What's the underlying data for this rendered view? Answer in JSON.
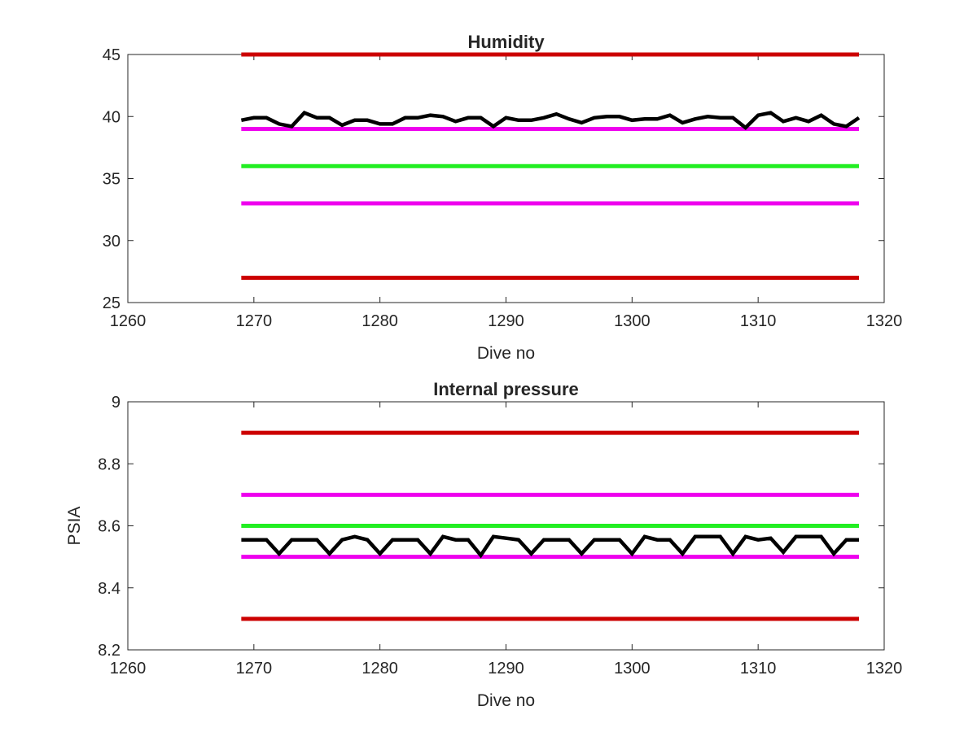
{
  "chart_data": [
    {
      "type": "line",
      "title": "Humidity",
      "xlabel": "Dive no",
      "ylabel": "",
      "xlim": [
        1260,
        1320
      ],
      "ylim": [
        25,
        45
      ],
      "xticks": [
        "1260",
        "1270",
        "1280",
        "1290",
        "1300",
        "1310",
        "1320"
      ],
      "yticks": [
        "25",
        "30",
        "35",
        "40",
        "45"
      ],
      "grid": false,
      "colors": {
        "red": "#cc0000",
        "magenta": "#ee00ee",
        "green": "#22ee22",
        "black": "#000000"
      },
      "reference_lines": [
        {
          "color": "#cc0000",
          "x": [
            1269,
            1318
          ],
          "y": 45
        },
        {
          "color": "#ee00ee",
          "x": [
            1269,
            1318
          ],
          "y": 39
        },
        {
          "color": "#22ee22",
          "x": [
            1269,
            1318
          ],
          "y": 36
        },
        {
          "color": "#ee00ee",
          "x": [
            1269,
            1318
          ],
          "y": 33
        },
        {
          "color": "#cc0000",
          "x": [
            1269,
            1318
          ],
          "y": 27
        }
      ],
      "series": [
        {
          "color": "#000000",
          "x": [
            1269,
            1270,
            1271,
            1272,
            1273,
            1274,
            1275,
            1276,
            1277,
            1278,
            1279,
            1280,
            1281,
            1282,
            1283,
            1284,
            1285,
            1286,
            1287,
            1288,
            1289,
            1290,
            1291,
            1292,
            1293,
            1294,
            1295,
            1296,
            1297,
            1298,
            1299,
            1300,
            1301,
            1302,
            1303,
            1304,
            1305,
            1306,
            1307,
            1308,
            1309,
            1310,
            1311,
            1312,
            1313,
            1314,
            1315,
            1316,
            1317,
            1318
          ],
          "values": [
            39.7,
            39.9,
            39.9,
            39.4,
            39.2,
            40.3,
            39.9,
            39.9,
            39.3,
            39.7,
            39.7,
            39.4,
            39.4,
            39.9,
            39.9,
            40.1,
            40.0,
            39.6,
            39.9,
            39.9,
            39.2,
            39.9,
            39.7,
            39.7,
            39.9,
            40.2,
            39.8,
            39.5,
            39.9,
            40.0,
            40.0,
            39.7,
            39.8,
            39.8,
            40.1,
            39.5,
            39.8,
            40.0,
            39.9,
            39.9,
            39.1,
            40.1,
            40.3,
            39.6,
            39.9,
            39.6,
            40.1,
            39.4,
            39.2,
            39.9
          ]
        }
      ]
    },
    {
      "type": "line",
      "title": "Internal pressure",
      "xlabel": "Dive no",
      "ylabel": "PSIA",
      "xlim": [
        1260,
        1320
      ],
      "ylim": [
        8.2,
        9
      ],
      "xticks": [
        "1260",
        "1270",
        "1280",
        "1290",
        "1300",
        "1310",
        "1320"
      ],
      "yticks": [
        "8.2",
        "8.4",
        "8.6",
        "8.8",
        "9"
      ],
      "grid": false,
      "colors": {
        "red": "#cc0000",
        "magenta": "#ee00ee",
        "green": "#22ee22",
        "black": "#000000"
      },
      "reference_lines": [
        {
          "color": "#cc0000",
          "x": [
            1269,
            1318
          ],
          "y": 8.9
        },
        {
          "color": "#ee00ee",
          "x": [
            1269,
            1318
          ],
          "y": 8.7
        },
        {
          "color": "#22ee22",
          "x": [
            1269,
            1318
          ],
          "y": 8.6
        },
        {
          "color": "#ee00ee",
          "x": [
            1269,
            1318
          ],
          "y": 8.5
        },
        {
          "color": "#cc0000",
          "x": [
            1269,
            1318
          ],
          "y": 8.3
        }
      ],
      "series": [
        {
          "color": "#000000",
          "x": [
            1269,
            1270,
            1271,
            1272,
            1273,
            1274,
            1275,
            1276,
            1277,
            1278,
            1279,
            1280,
            1281,
            1282,
            1283,
            1284,
            1285,
            1286,
            1287,
            1288,
            1289,
            1290,
            1291,
            1292,
            1293,
            1294,
            1295,
            1296,
            1297,
            1298,
            1299,
            1300,
            1301,
            1302,
            1303,
            1304,
            1305,
            1306,
            1307,
            1308,
            1309,
            1310,
            1311,
            1312,
            1313,
            1314,
            1315,
            1316,
            1317,
            1318
          ],
          "values": [
            8.555,
            8.555,
            8.555,
            8.51,
            8.555,
            8.555,
            8.555,
            8.51,
            8.555,
            8.565,
            8.555,
            8.51,
            8.555,
            8.555,
            8.555,
            8.51,
            8.565,
            8.555,
            8.555,
            8.505,
            8.565,
            8.56,
            8.555,
            8.51,
            8.555,
            8.555,
            8.555,
            8.51,
            8.555,
            8.555,
            8.555,
            8.51,
            8.565,
            8.555,
            8.555,
            8.51,
            8.565,
            8.565,
            8.565,
            8.51,
            8.565,
            8.555,
            8.56,
            8.515,
            8.565,
            8.565,
            8.565,
            8.51,
            8.555,
            8.555
          ]
        }
      ]
    }
  ]
}
